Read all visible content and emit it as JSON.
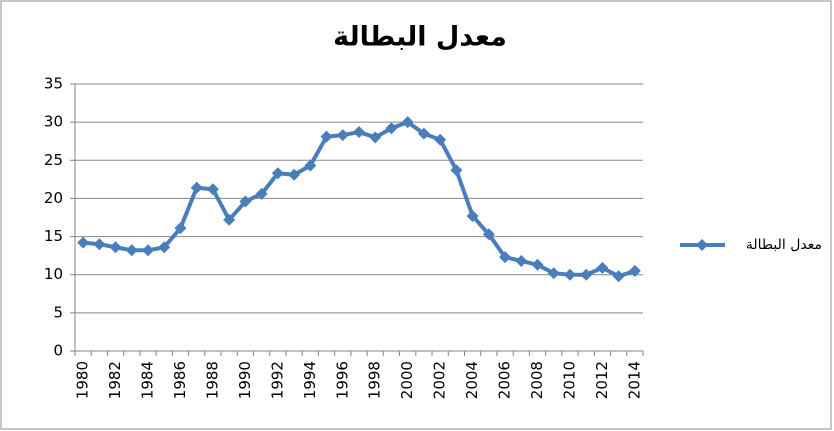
{
  "chart_data": {
    "type": "line",
    "title": "معدل البطالة",
    "categories": [
      "1980",
      null,
      "1982",
      null,
      "1984",
      null,
      "1986",
      null,
      "1988",
      null,
      "1990",
      null,
      "1992",
      null,
      "1994",
      null,
      "1996",
      null,
      "1998",
      null,
      "2000",
      null,
      "2002",
      null,
      "2004",
      null,
      "2006",
      null,
      "2008",
      null,
      "2010",
      null,
      "2012",
      null,
      "2014"
    ],
    "series": [
      {
        "name": "معدل البطالة",
        "color": "#4a7ebb",
        "values": [
          14.2,
          14.0,
          13.6,
          13.2,
          13.2,
          13.6,
          16.1,
          21.4,
          21.2,
          17.2,
          19.6,
          20.6,
          23.3,
          23.1,
          24.3,
          28.1,
          28.3,
          28.7,
          28.0,
          29.2,
          30.0,
          28.5,
          27.7,
          23.7,
          17.7,
          15.3,
          12.3,
          11.8,
          11.3,
          10.2,
          10.0,
          10.0,
          10.9,
          9.8,
          10.5
        ]
      }
    ],
    "ylim": [
      0,
      35
    ],
    "yticks": [
      0,
      5,
      10,
      15,
      20,
      25,
      30,
      35
    ],
    "grid": true,
    "legend": "right"
  }
}
